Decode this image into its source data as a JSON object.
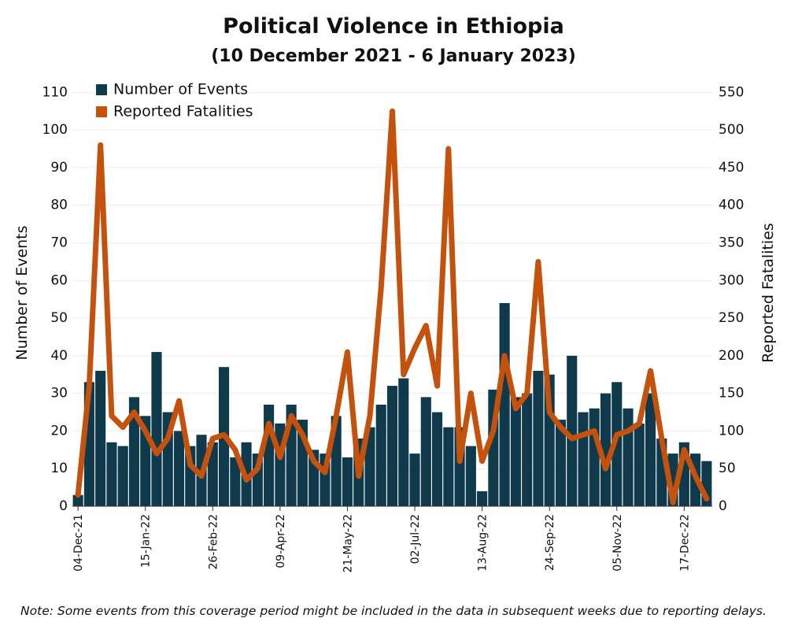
{
  "chart_data": {
    "type": "bar-line",
    "title": "Political Violence in Ethiopia",
    "subtitle": "(10 December 2021 - 6 January 2023)",
    "ylabel": "Number of Events",
    "y2label": "Reported Fatalities",
    "note": "Note: Some events from this coverage period might be included in the data in subsequent weeks due to reporting delays.",
    "categories": [
      "04-Dec-21",
      null,
      null,
      null,
      null,
      null,
      "15-Jan-22",
      null,
      null,
      null,
      null,
      null,
      "26-Feb-22",
      null,
      null,
      null,
      null,
      null,
      "09-Apr-22",
      null,
      null,
      null,
      null,
      null,
      "21-May-22",
      null,
      null,
      null,
      null,
      null,
      "02-Jul-22",
      null,
      null,
      null,
      null,
      null,
      "13-Aug-22",
      null,
      null,
      null,
      null,
      null,
      "24-Sep-22",
      null,
      null,
      null,
      null,
      null,
      "05-Nov-22",
      null,
      null,
      null,
      null,
      null,
      "17-Dec-22",
      null,
      null
    ],
    "series": [
      {
        "name": "Number of Events",
        "color": "#0f3a4b",
        "type": "bar",
        "values": [
          3,
          33,
          36,
          17,
          16,
          29,
          24,
          41,
          25,
          20,
          16,
          19,
          17,
          37,
          13,
          17,
          14,
          27,
          22,
          27,
          23,
          15,
          14,
          24,
          13,
          18,
          21,
          27,
          32,
          34,
          14,
          29,
          25,
          21,
          21,
          16,
          4,
          31,
          54,
          29,
          30,
          36,
          35,
          23,
          40,
          25,
          26,
          30,
          33,
          26,
          22,
          30,
          18,
          14,
          17,
          14,
          12
        ]
      },
      {
        "name": "Reported Fatalities",
        "color": "#c4510c",
        "type": "line",
        "axis": "y2",
        "values": [
          15,
          160,
          480,
          120,
          105,
          125,
          100,
          70,
          90,
          140,
          55,
          40,
          90,
          95,
          75,
          35,
          50,
          110,
          65,
          120,
          95,
          60,
          45,
          120,
          205,
          40,
          120,
          290,
          525,
          175,
          210,
          240,
          160,
          475,
          60,
          150,
          60,
          100,
          200,
          130,
          150,
          325,
          125,
          105,
          90,
          95,
          100,
          50,
          95,
          100,
          110,
          180,
          90,
          5,
          75,
          40,
          10
        ]
      }
    ],
    "ylim": [
      0,
      113
    ],
    "yticks": [
      0,
      10,
      20,
      30,
      40,
      50,
      60,
      70,
      80,
      90,
      100,
      110
    ],
    "y2lim": [
      0,
      565
    ],
    "y2ticks": [
      0,
      50,
      100,
      150,
      200,
      250,
      300,
      350,
      400,
      450,
      500,
      550
    ],
    "grid": true,
    "legend": "upper left"
  }
}
